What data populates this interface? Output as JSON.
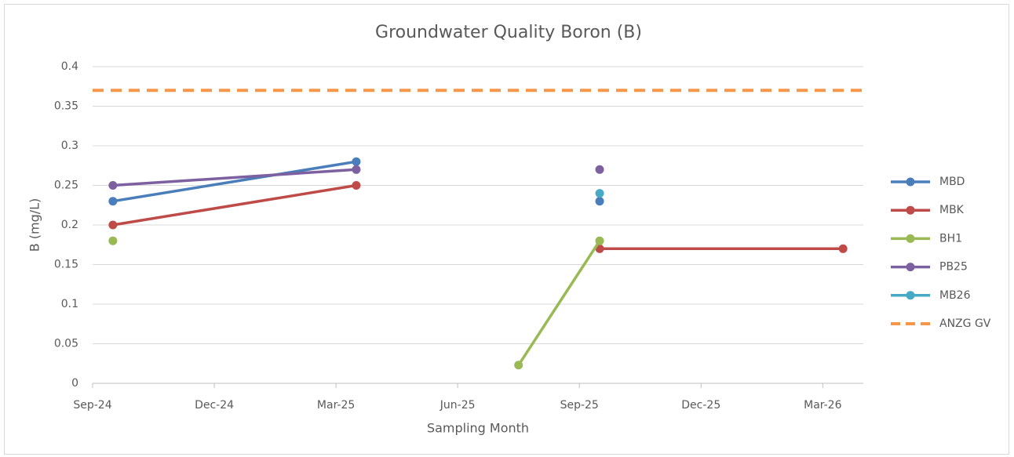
{
  "chart_data": {
    "type": "line",
    "title": "Groundwater Quality Boron (B)",
    "x_label": "Sampling Month",
    "y_label": "B (mg/L)",
    "x": [
      "Sep-24",
      "Mar-25",
      "Jul-25",
      "Sep-25",
      "Mar-26"
    ],
    "series": [
      {
        "name": "MBD",
        "color": "#4a7ebb",
        "values": [
          0.23,
          0.28,
          null,
          0.23,
          null
        ]
      },
      {
        "name": "MBK",
        "color": "#be4b48",
        "values": [
          0.2,
          0.25,
          null,
          0.17,
          0.17
        ]
      },
      {
        "name": "BH1",
        "color": "#98b954",
        "values": [
          0.18,
          null,
          0.023,
          0.18,
          null
        ]
      },
      {
        "name": "PB25",
        "color": "#7d60a0",
        "values": [
          0.25,
          0.27,
          null,
          0.27,
          null
        ]
      },
      {
        "name": "MB26",
        "color": "#46aac5",
        "values": [
          null,
          null,
          null,
          0.24,
          null
        ]
      }
    ],
    "reference_line": {
      "name": "ANZG GV",
      "color": "#f79646",
      "value": 0.37,
      "dashed": true
    },
    "xlim": [
      "Sep-24",
      "Apr-26"
    ],
    "xticks": [
      "Sep-24",
      "Dec-24",
      "Mar-25",
      "Jun-25",
      "Sep-25",
      "Dec-25",
      "Mar-26"
    ],
    "ylim": [
      0,
      0.4
    ],
    "yticks": [
      0,
      0.05,
      0.1,
      0.15,
      0.2,
      0.25,
      0.3,
      0.35,
      0.4
    ],
    "grid": true,
    "legend": "right"
  }
}
